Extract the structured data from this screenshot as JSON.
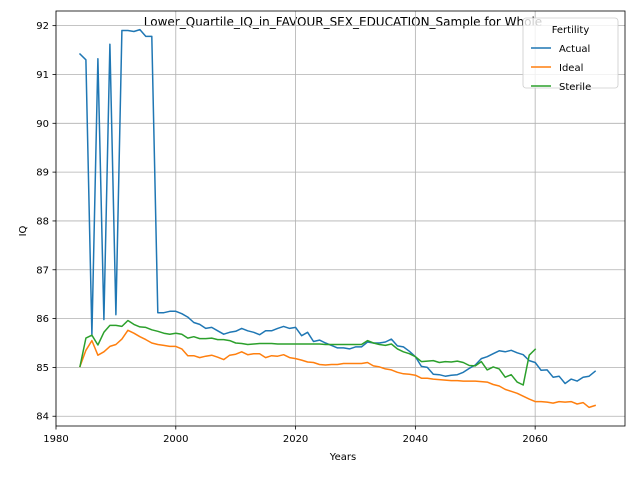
{
  "chart_data": {
    "type": "line",
    "title": "Lower_Quartile_IQ_in_FAVOUR_SEX_EDUCATION_Sample for Whole",
    "xlabel": "Years",
    "ylabel": "IQ",
    "xlim": [
      1980,
      2075
    ],
    "ylim": [
      83.8,
      92.3
    ],
    "xticks": [
      1980,
      2000,
      2020,
      2040,
      2060
    ],
    "yticks": [
      84,
      85,
      86,
      87,
      88,
      89,
      90,
      91,
      92
    ],
    "grid": true,
    "legend": {
      "title": "Fertility",
      "placement": "top-right"
    },
    "series": [
      {
        "name": "Actual",
        "color": "#1f77b4",
        "x": [
          1984,
          1985,
          1986,
          1987,
          1988,
          1989,
          1990,
          1991,
          1992,
          1993,
          1994,
          1995,
          1996,
          1997,
          1998,
          1999,
          2000,
          2001,
          2002,
          2003,
          2004,
          2005,
          2006,
          2007,
          2008,
          2009,
          2010,
          2011,
          2012,
          2013,
          2014,
          2015,
          2016,
          2017,
          2018,
          2019,
          2020,
          2021,
          2022,
          2023,
          2024,
          2025,
          2026,
          2027,
          2028,
          2029,
          2030,
          2031,
          2032,
          2033,
          2034,
          2035,
          2036,
          2037,
          2038,
          2039,
          2040,
          2041,
          2042,
          2043,
          2044,
          2045,
          2046,
          2047,
          2048,
          2049,
          2050,
          2051,
          2052,
          2053,
          2054,
          2055,
          2056,
          2057,
          2058,
          2059,
          2060,
          2061,
          2062,
          2063,
          2064,
          2065,
          2066,
          2067,
          2068,
          2069,
          2070
        ],
        "values": [
          91.42,
          91.3,
          85.67,
          91.32,
          85.98,
          91.62,
          86.08,
          91.9,
          91.9,
          91.88,
          91.92,
          91.78,
          91.78,
          86.12,
          86.12,
          86.15,
          86.15,
          86.1,
          86.03,
          85.92,
          85.88,
          85.8,
          85.82,
          85.75,
          85.68,
          85.72,
          85.74,
          85.8,
          85.75,
          85.72,
          85.67,
          85.75,
          85.75,
          85.8,
          85.84,
          85.8,
          85.82,
          85.65,
          85.72,
          85.53,
          85.56,
          85.5,
          85.45,
          85.4,
          85.4,
          85.38,
          85.42,
          85.42,
          85.52,
          85.5,
          85.5,
          85.52,
          85.58,
          85.44,
          85.42,
          85.33,
          85.22,
          85.02,
          85.0,
          84.86,
          84.85,
          84.82,
          84.84,
          84.85,
          84.9,
          84.98,
          85.05,
          85.18,
          85.22,
          85.28,
          85.34,
          85.32,
          85.35,
          85.3,
          85.26,
          85.14,
          85.1,
          84.94,
          84.95,
          84.8,
          84.82,
          84.67,
          84.76,
          84.72,
          84.8,
          84.82,
          84.92
        ]
      },
      {
        "name": "Ideal",
        "color": "#ff7f0e",
        "x": [
          1984,
          1985,
          1986,
          1987,
          1988,
          1989,
          1990,
          1991,
          1992,
          1993,
          1994,
          1995,
          1996,
          1997,
          1998,
          1999,
          2000,
          2001,
          2002,
          2003,
          2004,
          2005,
          2006,
          2007,
          2008,
          2009,
          2010,
          2011,
          2012,
          2013,
          2014,
          2015,
          2016,
          2017,
          2018,
          2019,
          2020,
          2021,
          2022,
          2023,
          2024,
          2025,
          2026,
          2027,
          2028,
          2029,
          2030,
          2031,
          2032,
          2033,
          2034,
          2035,
          2036,
          2037,
          2038,
          2039,
          2040,
          2041,
          2042,
          2043,
          2044,
          2045,
          2046,
          2047,
          2048,
          2049,
          2050,
          2051,
          2052,
          2053,
          2054,
          2055,
          2056,
          2057,
          2058,
          2059,
          2060,
          2061,
          2062,
          2063,
          2064,
          2065,
          2066,
          2067,
          2068,
          2069,
          2070
        ],
        "values": [
          85.02,
          85.35,
          85.55,
          85.25,
          85.32,
          85.43,
          85.47,
          85.58,
          85.76,
          85.7,
          85.63,
          85.57,
          85.5,
          85.47,
          85.45,
          85.43,
          85.43,
          85.38,
          85.24,
          85.24,
          85.2,
          85.23,
          85.25,
          85.21,
          85.16,
          85.25,
          85.27,
          85.32,
          85.26,
          85.28,
          85.28,
          85.2,
          85.24,
          85.23,
          85.26,
          85.2,
          85.18,
          85.15,
          85.11,
          85.1,
          85.06,
          85.05,
          85.06,
          85.06,
          85.08,
          85.08,
          85.08,
          85.08,
          85.1,
          85.03,
          85.01,
          84.97,
          84.95,
          84.9,
          84.87,
          84.86,
          84.84,
          84.78,
          84.78,
          84.76,
          84.75,
          84.74,
          84.73,
          84.73,
          84.72,
          84.72,
          84.72,
          84.71,
          84.7,
          84.65,
          84.62,
          84.55,
          84.51,
          84.47,
          84.41,
          84.35,
          84.3,
          84.3,
          84.29,
          84.27,
          84.3,
          84.29,
          84.3,
          84.25,
          84.28,
          84.18,
          84.22
        ]
      },
      {
        "name": "Sterile",
        "color": "#2ca02c",
        "x": [
          1984,
          1985,
          1986,
          1987,
          1988,
          1989,
          1990,
          1991,
          1992,
          1993,
          1994,
          1995,
          1996,
          1997,
          1998,
          1999,
          2000,
          2001,
          2002,
          2003,
          2004,
          2005,
          2006,
          2007,
          2008,
          2009,
          2010,
          2011,
          2012,
          2013,
          2014,
          2015,
          2016,
          2017,
          2018,
          2019,
          2020,
          2021,
          2022,
          2023,
          2024,
          2025,
          2026,
          2027,
          2028,
          2029,
          2030,
          2031,
          2032,
          2033,
          2034,
          2035,
          2036,
          2037,
          2038,
          2039,
          2040,
          2041,
          2042,
          2043,
          2044,
          2045,
          2046,
          2047,
          2048,
          2049,
          2050,
          2051,
          2052,
          2053,
          2054,
          2055,
          2056,
          2057,
          2058,
          2059,
          2060
        ],
        "values": [
          85.02,
          85.6,
          85.66,
          85.46,
          85.72,
          85.86,
          85.86,
          85.84,
          85.96,
          85.88,
          85.83,
          85.82,
          85.77,
          85.74,
          85.7,
          85.68,
          85.7,
          85.68,
          85.6,
          85.63,
          85.59,
          85.59,
          85.6,
          85.57,
          85.57,
          85.55,
          85.5,
          85.49,
          85.47,
          85.48,
          85.49,
          85.49,
          85.49,
          85.48,
          85.48,
          85.48,
          85.48,
          85.48,
          85.48,
          85.48,
          85.48,
          85.47,
          85.47,
          85.47,
          85.47,
          85.47,
          85.47,
          85.47,
          85.55,
          85.5,
          85.47,
          85.45,
          85.48,
          85.38,
          85.32,
          85.28,
          85.22,
          85.12,
          85.13,
          85.14,
          85.1,
          85.12,
          85.11,
          85.13,
          85.1,
          85.04,
          85.03,
          85.12,
          84.95,
          85.01,
          84.97,
          84.8,
          84.85,
          84.7,
          84.64,
          85.25,
          85.37
        ]
      }
    ]
  }
}
